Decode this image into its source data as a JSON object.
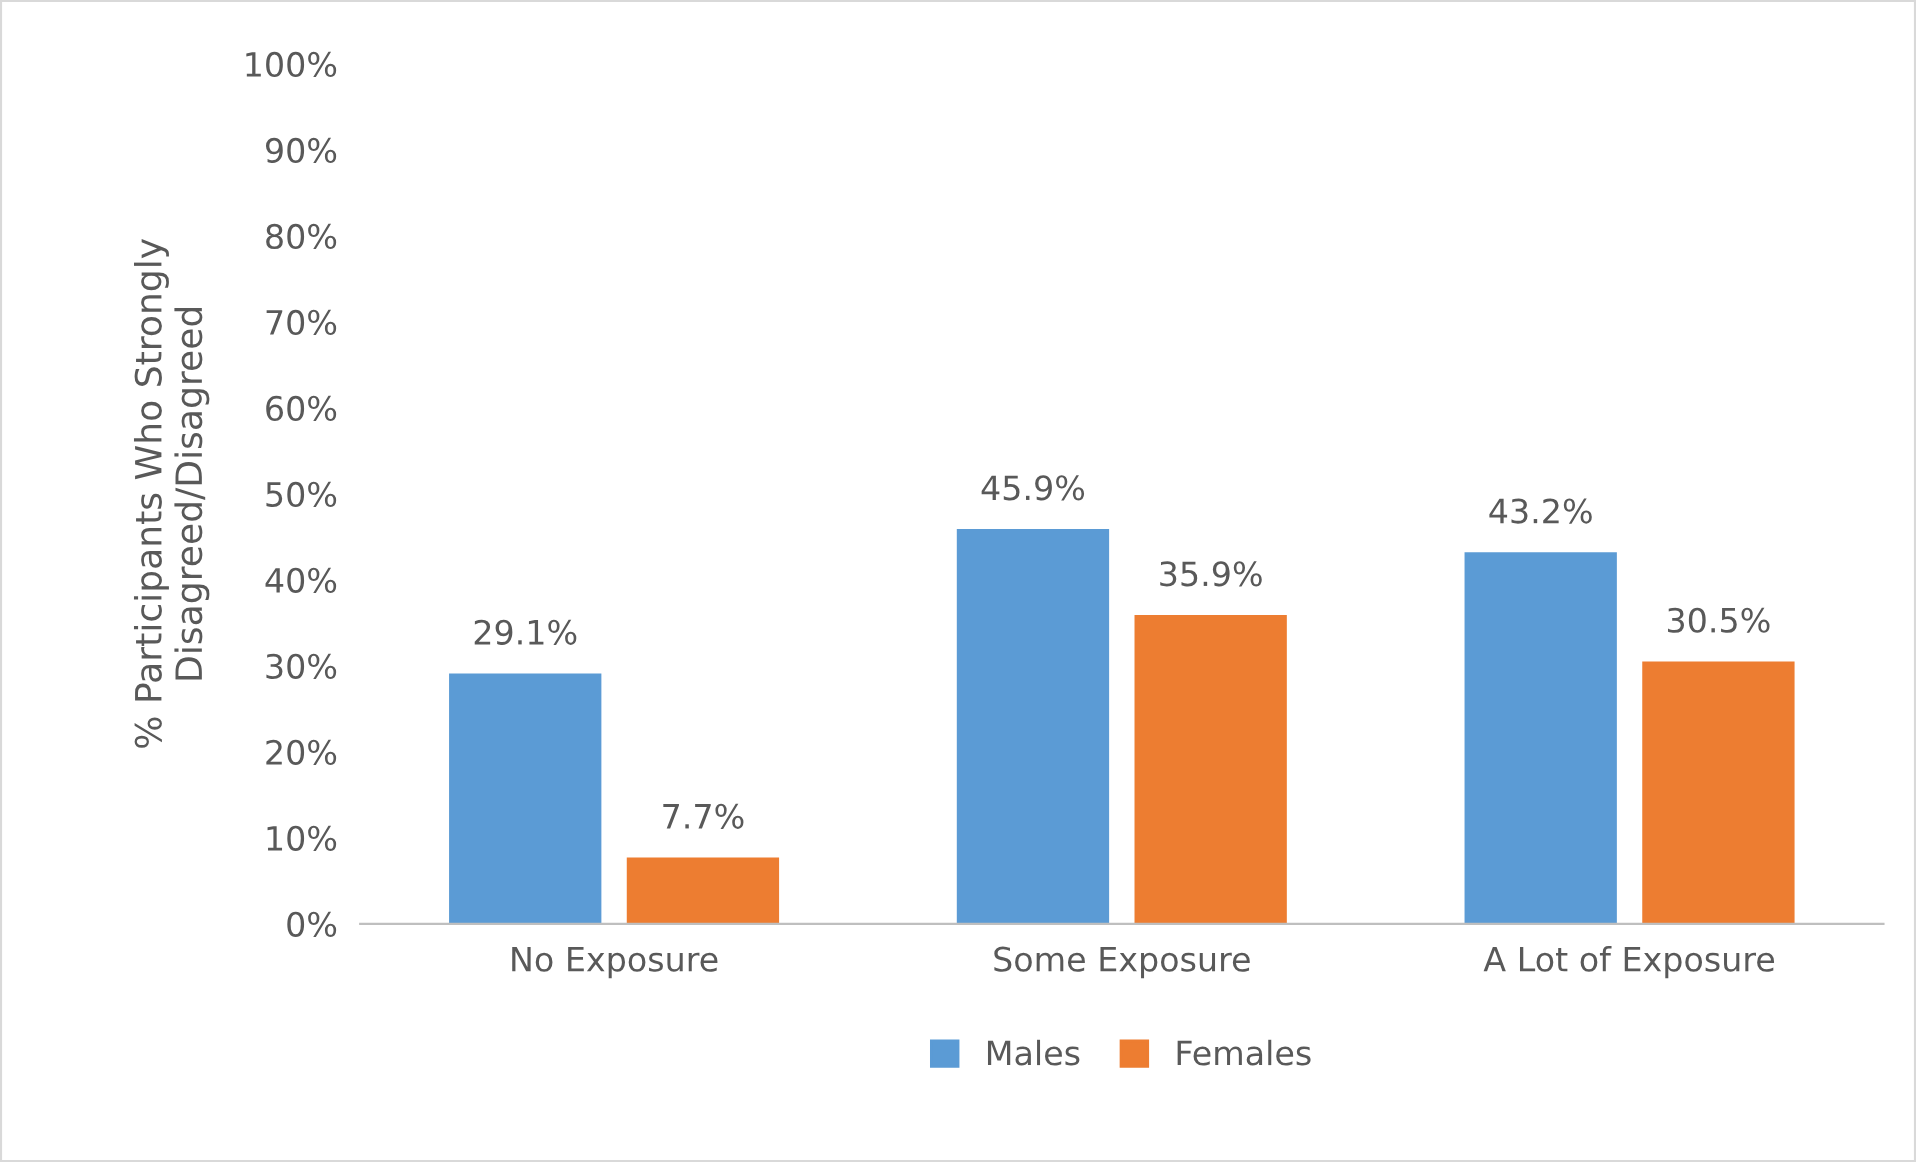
{
  "chart_data": {
    "type": "bar",
    "ylabel": "% Participants Who Strongly\nDisagreed/Disagreed",
    "categories": [
      "No Exposure",
      "Some Exposure",
      "A Lot of Exposure"
    ],
    "series": [
      {
        "name": "Males",
        "color": "#5b9bd5",
        "values": [
          29.1,
          45.9,
          43.2
        ],
        "value_labels": [
          "29.1%",
          "45.9%",
          "43.2%"
        ]
      },
      {
        "name": "Females",
        "color": "#ed7d31",
        "values": [
          7.7,
          35.9,
          30.5
        ],
        "value_labels": [
          "7.7%",
          "35.9%",
          "30.5%"
        ]
      }
    ],
    "ylim": [
      0,
      100
    ],
    "yticks": [
      {
        "value": 0,
        "label": "0%"
      },
      {
        "value": 10,
        "label": "10%"
      },
      {
        "value": 20,
        "label": "20%"
      },
      {
        "value": 30,
        "label": "30%"
      },
      {
        "value": 40,
        "label": "40%"
      },
      {
        "value": 50,
        "label": "50%"
      },
      {
        "value": 60,
        "label": "60%"
      },
      {
        "value": 70,
        "label": "70%"
      },
      {
        "value": 80,
        "label": "80%"
      },
      {
        "value": 90,
        "label": "90%"
      },
      {
        "value": 100,
        "label": "100%"
      }
    ],
    "grid": false,
    "legend": "bottom"
  }
}
